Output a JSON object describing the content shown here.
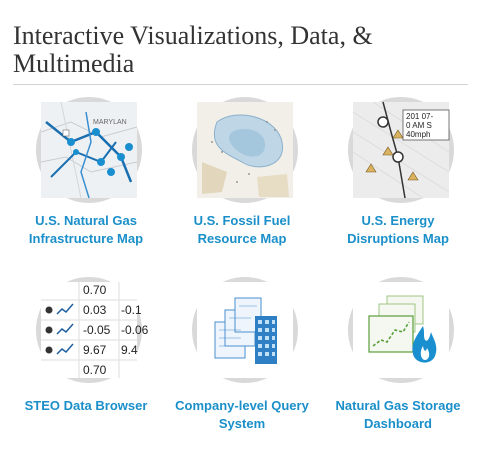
{
  "page": {
    "title_line1": "Interactive Visualizations, Data, &",
    "title_line2": "Multimedia"
  },
  "tiles": [
    {
      "label_line1": "U.S. Natural Gas",
      "label_line2": "Infrastructure Map",
      "icon": "natural-gas-map-icon"
    },
    {
      "label_line1": "U.S. Fossil Fuel",
      "label_line2": "Resource Map",
      "icon": "fossil-fuel-map-icon"
    },
    {
      "label_line1": "U.S. Energy",
      "label_line2": "Disruptions Map",
      "icon": "energy-disruptions-map-icon"
    },
    {
      "label_line1": "STEO Data Browser",
      "label_line2": "",
      "icon": "data-table-icon",
      "thumb": {
        "rows": [
          "0.70",
          "0.03",
          "-0.05",
          "9.67",
          "0.70"
        ],
        "col2": [
          "",
          "-0.1",
          "-0.06",
          "9.4",
          ""
        ]
      }
    },
    {
      "label_line1": "Company-level Query",
      "label_line2": "System",
      "icon": "building-query-icon"
    },
    {
      "label_line1": "Natural Gas Storage",
      "label_line2": "Dashboard",
      "icon": "gas-flame-chart-icon"
    }
  ],
  "thumb_text": {
    "map1_label": "MARYLAN",
    "map3_time": "201 07-",
    "map3_time2": "0 AM S",
    "map3_speed": "40mph"
  },
  "colors": {
    "link": "#1a8fc9",
    "title": "#333333",
    "circle_border": "#d9d9d9",
    "gas_blue": "#1a8fd0",
    "storage_green": "#5a9e3a"
  }
}
